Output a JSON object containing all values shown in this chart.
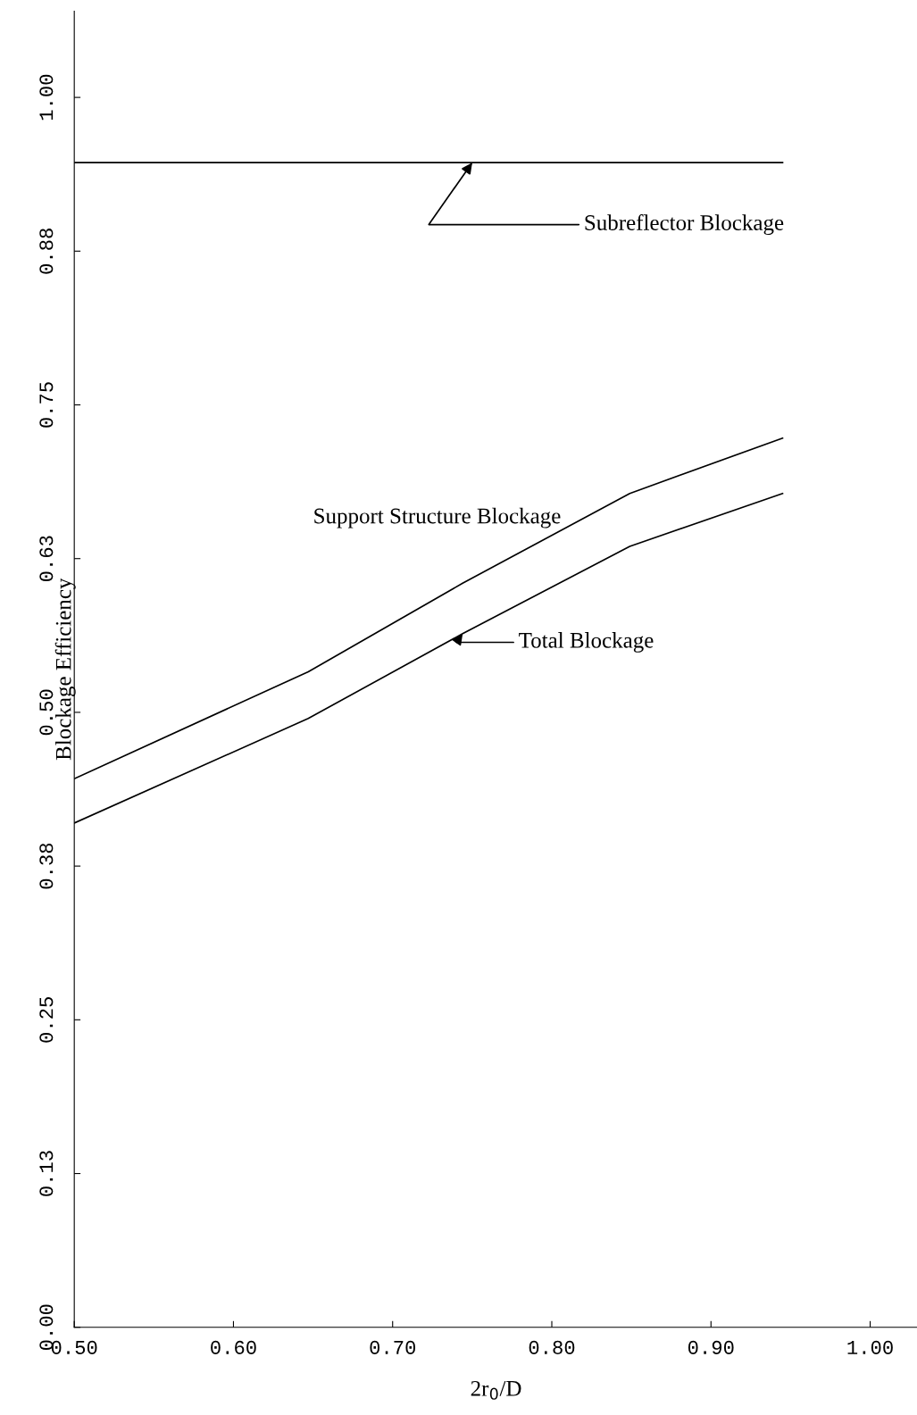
{
  "chart_data": {
    "type": "line",
    "xlabel": "2r$_{0}$/D",
    "ylabel": "Blockage Efficiency",
    "xlim": [
      0.5,
      1.03
    ],
    "ylim": [
      0,
      1.07
    ],
    "xticks": [
      {
        "value": 0.5,
        "label": "0.50"
      },
      {
        "value": 0.6,
        "label": "0.60"
      },
      {
        "value": 0.7,
        "label": "0.70"
      },
      {
        "value": 0.8,
        "label": "0.80"
      },
      {
        "value": 0.9,
        "label": "0.90"
      },
      {
        "value": 1.0,
        "label": "1.00"
      }
    ],
    "yticks": [
      {
        "value": 0,
        "label": "0.00"
      },
      {
        "value": 0.125,
        "label": "0.13"
      },
      {
        "value": 0.25,
        "label": "0.25"
      },
      {
        "value": 0.375,
        "label": "0.38"
      },
      {
        "value": 0.5,
        "label": "0.50"
      },
      {
        "value": 0.625,
        "label": "0.63"
      },
      {
        "value": 0.75,
        "label": "0.75"
      },
      {
        "value": 0.875,
        "label": "0.88"
      },
      {
        "value": 1.0,
        "label": "1.00"
      }
    ],
    "grid": false,
    "legend": false,
    "series": [
      {
        "color": "#000000",
        "x": [
          0.5,
          0.945
        ],
        "values": [
          0.947,
          0.947
        ]
      },
      {
        "color": "#000000",
        "x": [
          0.5,
          0.647,
          0.744,
          0.849,
          0.945
        ],
        "values": [
          0.446,
          0.533,
          0.605,
          0.678,
          0.723
        ]
      },
      {
        "color": "#000000",
        "x": [
          0.5,
          0.647,
          0.744,
          0.849,
          0.945
        ],
        "values": [
          0.41,
          0.495,
          0.564,
          0.635,
          0.678
        ]
      }
    ],
    "annotations": [
      {
        "text": "Subreflector Blockage",
        "x": 0.75,
        "y": 0.947
      },
      "Support Structure Blockage",
      {
        "text": "Total Blockage",
        "x": 0.744,
        "y": 0.564
      }
    ]
  }
}
